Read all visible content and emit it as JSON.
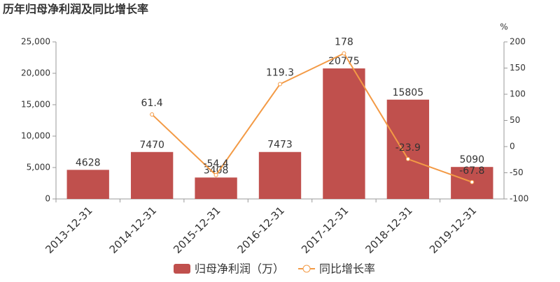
{
  "chart_data": {
    "type": "bar",
    "title": "历年归母净利润及同比增长率",
    "y2label": "%",
    "categories": [
      "2013-12-31",
      "2014-12-31",
      "2015-12-31",
      "2016-12-31",
      "2017-12-31",
      "2018-12-31",
      "2019-12-31"
    ],
    "series": [
      {
        "name": "归母净利润（万）",
        "type": "bar",
        "color": "#c0504d",
        "values": [
          4628,
          7470,
          3408,
          7473,
          20775,
          15805,
          5090
        ]
      },
      {
        "name": "同比增长率",
        "type": "line",
        "axis": "y2",
        "color": "#f39a45",
        "values": [
          null,
          61.4,
          -54.4,
          119.3,
          178,
          -23.9,
          -67.8
        ]
      }
    ],
    "ylim": [
      0,
      25000
    ],
    "yticks": [
      0,
      {
        "value": 5000,
        "label": "5,000"
      },
      {
        "value": 10000,
        "label": "10,000"
      },
      {
        "value": 15000,
        "label": "15,000"
      },
      {
        "value": 20000,
        "label": "20,000"
      },
      {
        "value": 25000,
        "label": "25,000"
      }
    ],
    "y2lim": [
      -100,
      200
    ],
    "y2ticks": [
      -100,
      -50,
      0,
      50,
      100,
      150,
      200
    ],
    "grid": false
  }
}
